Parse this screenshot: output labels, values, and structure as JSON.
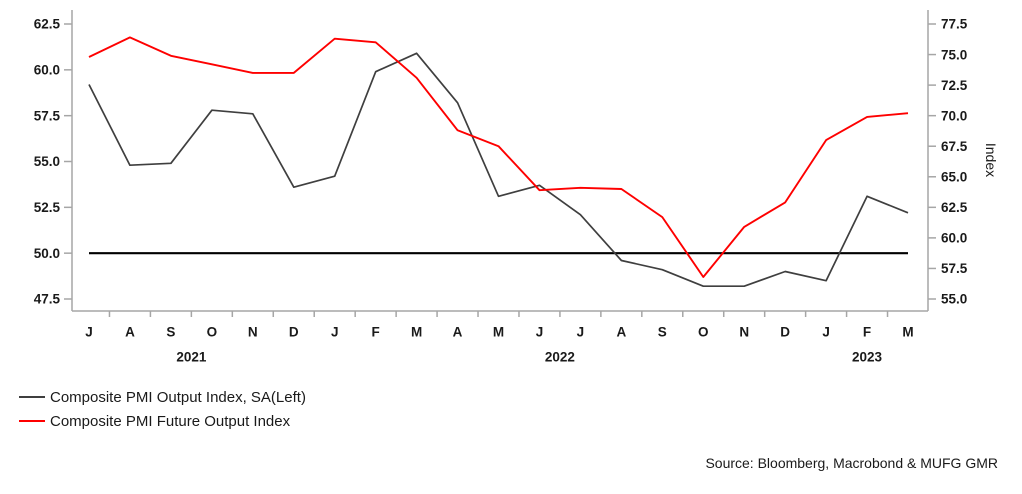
{
  "chart_data": {
    "type": "line",
    "title": "",
    "x_months": [
      "J",
      "A",
      "S",
      "O",
      "N",
      "D",
      "J",
      "F",
      "M",
      "A",
      "M",
      "J",
      "J",
      "A",
      "S",
      "O",
      "N",
      "D",
      "J",
      "F",
      "M"
    ],
    "years": [
      {
        "label": "2021",
        "month_index": 2.5
      },
      {
        "label": "2022",
        "month_index": 11.5
      },
      {
        "label": "2023",
        "month_index": 19
      }
    ],
    "left_axis": {
      "min": 47.5,
      "max": 62.5,
      "tick_step": 2.5,
      "ticks": [
        "62.5",
        "60.0",
        "57.5",
        "55.0",
        "52.5",
        "50.0",
        "47.5"
      ]
    },
    "right_axis": {
      "min": 55.0,
      "max": 77.5,
      "tick_step": 2.5,
      "label": "Index",
      "ticks": [
        "77.5",
        "75.0",
        "72.5",
        "70.0",
        "67.5",
        "65.0",
        "62.5",
        "60.0",
        "57.5",
        "55.0"
      ]
    },
    "reference_line": {
      "axis": "left",
      "value": 50.0
    },
    "series": [
      {
        "name": "Composite PMI Output Index, SA(Left)",
        "axis": "left",
        "color": "#3f3f3f",
        "values": [
          59.2,
          54.8,
          54.9,
          57.8,
          57.6,
          53.6,
          54.2,
          59.9,
          60.9,
          58.2,
          53.1,
          53.7,
          52.1,
          49.6,
          49.1,
          48.2,
          48.2,
          49.0,
          48.5,
          53.1,
          52.2
        ]
      },
      {
        "name": "Composite PMI Future Output Index",
        "axis": "right",
        "color": "#fe0000",
        "values": [
          74.8,
          76.4,
          74.9,
          74.2,
          73.5,
          73.5,
          76.3,
          76.0,
          73.1,
          68.8,
          67.5,
          63.9,
          64.1,
          64.0,
          61.7,
          56.8,
          60.9,
          62.9,
          68.0,
          69.9,
          70.2
        ]
      }
    ],
    "legend_position": "bottom-left",
    "grid": false
  },
  "legend": {
    "item1": "Composite PMI Output Index, SA(Left)",
    "item2": "Composite PMI Future Output Index"
  },
  "source": "Source: Bloomberg, Macrobond & MUFG GMR",
  "colors": {
    "series_output": "#3f3f3f",
    "series_future_output": "#fe0000",
    "reference_line": "#000000",
    "axis": "#a6a6a6",
    "text": "#1a1a1a",
    "background": "#ffffff"
  }
}
